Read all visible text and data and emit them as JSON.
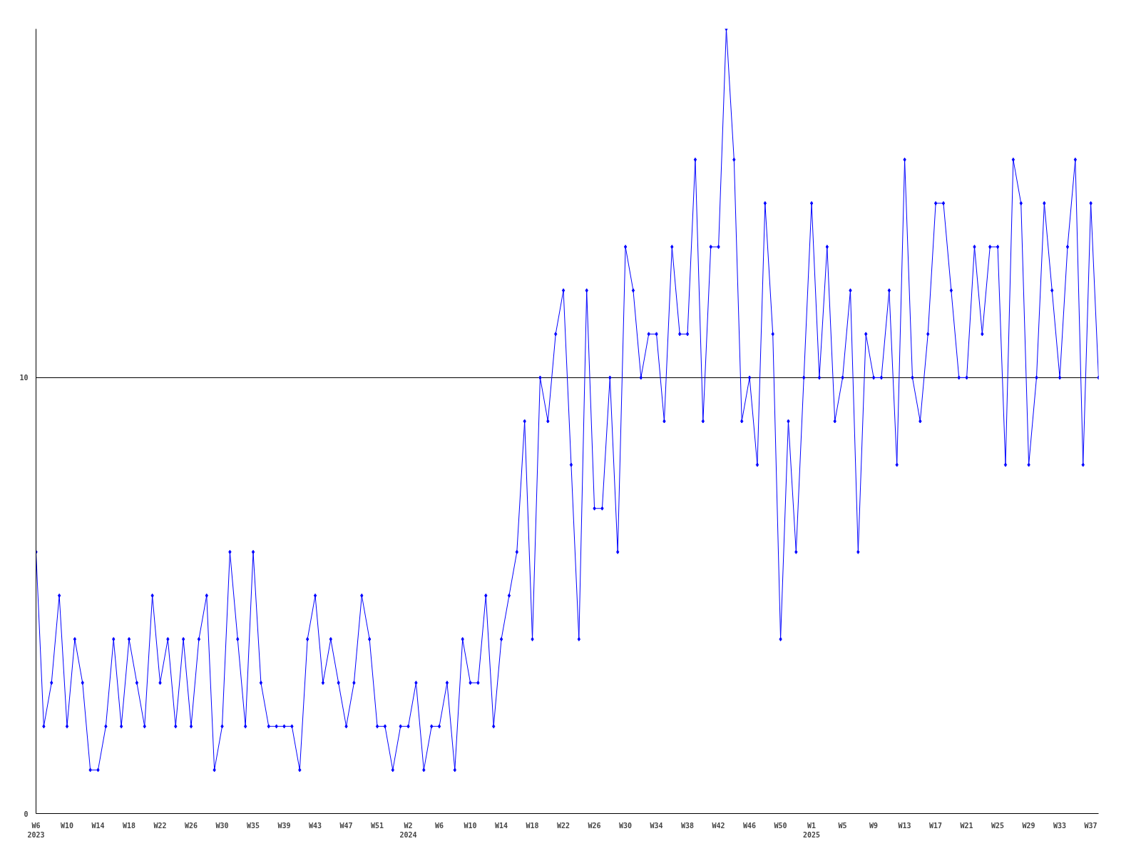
{
  "chart_data": {
    "type": "line",
    "categories": [
      "W6\n2023",
      null,
      null,
      null,
      "W10",
      null,
      null,
      null,
      "W14",
      null,
      null,
      null,
      "W18",
      null,
      null,
      null,
      "W22",
      null,
      null,
      null,
      "W26",
      null,
      null,
      null,
      "W30",
      null,
      null,
      null,
      "W35",
      null,
      null,
      null,
      "W39",
      null,
      null,
      null,
      "W43",
      null,
      null,
      null,
      "W47",
      null,
      null,
      null,
      "W51",
      null,
      null,
      null,
      "W2\n2024",
      null,
      null,
      null,
      "W6",
      null,
      null,
      null,
      "W10",
      null,
      null,
      null,
      "W14",
      null,
      null,
      null,
      "W18",
      null,
      null,
      null,
      "W22",
      null,
      null,
      null,
      "W26",
      null,
      null,
      null,
      "W30",
      null,
      null,
      null,
      "W34",
      null,
      null,
      null,
      "W38",
      null,
      null,
      null,
      "W42",
      null,
      null,
      null,
      "W46",
      null,
      null,
      null,
      "W50",
      null,
      null,
      null,
      "W1\n2025",
      null,
      null,
      null,
      "W5",
      null,
      null,
      null,
      "W9",
      null,
      null,
      null,
      "W13",
      null,
      null,
      null,
      "W17",
      null,
      null,
      null,
      "W21",
      null,
      null,
      null,
      "W25",
      null,
      null,
      null,
      "W29",
      null,
      null,
      null,
      "W33",
      null,
      null,
      null,
      "W37",
      null
    ],
    "series": [
      {
        "color": "#0000ff",
        "values": [
          6,
          2,
          3,
          5,
          2,
          4,
          3,
          1,
          1,
          2,
          4,
          2,
          4,
          3,
          2,
          5,
          3,
          4,
          2,
          4,
          2,
          4,
          5,
          1,
          2,
          6,
          4,
          2,
          6,
          3,
          2,
          2,
          2,
          2,
          1,
          4,
          5,
          3,
          4,
          3,
          2,
          3,
          5,
          4,
          2,
          2,
          1,
          2,
          2,
          3,
          1,
          2,
          2,
          3,
          1,
          4,
          3,
          3,
          5,
          2,
          4,
          5,
          6,
          9,
          4,
          10,
          9,
          11,
          12,
          8,
          4,
          12,
          7,
          7,
          10,
          6,
          13,
          12,
          10,
          11,
          11,
          9,
          13,
          11,
          11,
          15,
          9,
          13,
          13,
          18,
          15,
          9,
          10,
          8,
          14,
          11,
          4,
          9,
          6,
          10,
          14,
          10,
          13,
          9,
          10,
          12,
          6,
          11,
          10,
          10,
          12,
          8,
          15,
          10,
          9,
          11,
          14,
          14,
          12,
          10,
          10,
          13,
          11,
          13,
          13,
          8,
          15,
          14,
          8,
          10,
          14,
          12,
          10,
          13,
          15,
          8,
          14,
          10
        ]
      }
    ],
    "ylim": [
      0,
      18
    ],
    "yticks": [
      0,
      10
    ],
    "grid": "y",
    "marker": "diamond",
    "line_style": "solid"
  }
}
